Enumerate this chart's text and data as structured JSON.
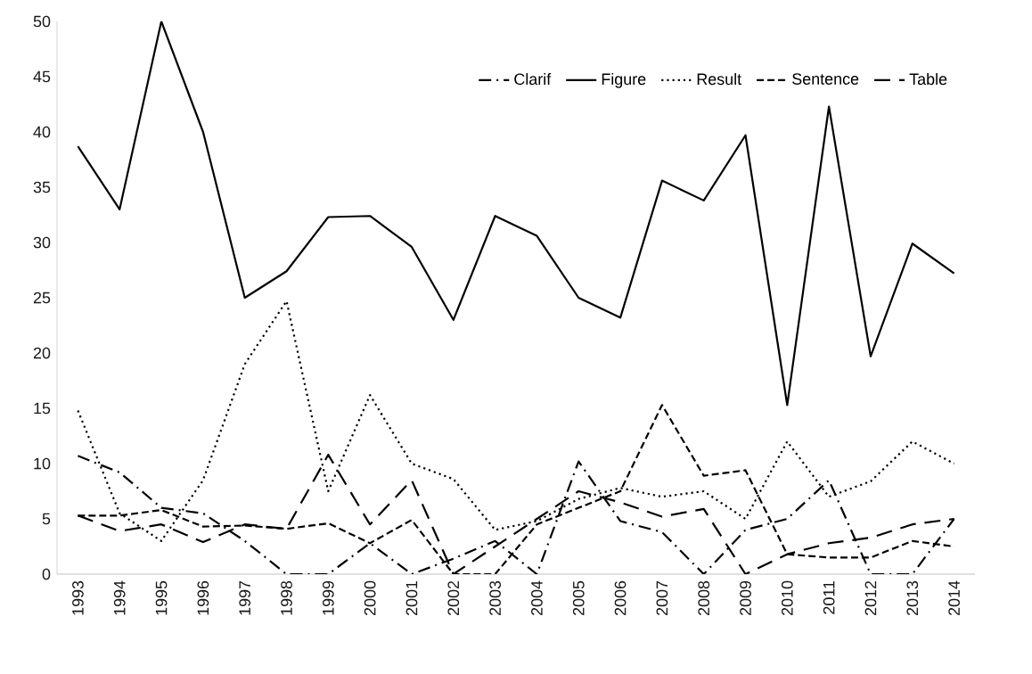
{
  "chart_data": {
    "type": "line",
    "categories": [
      "1993",
      "1994",
      "1995",
      "1996",
      "1997",
      "1998",
      "1999",
      "2000",
      "2001",
      "2002",
      "2003",
      "2004",
      "2005",
      "2006",
      "2007",
      "2008",
      "2009",
      "2010",
      "2011",
      "2012",
      "2013",
      "2014"
    ],
    "series": [
      {
        "name": "Clarif",
        "color": "#000000",
        "line_style": "dashdotted",
        "values": [
          10.7,
          9.2,
          6,
          5.5,
          3,
          0,
          0,
          2.8,
          0,
          1.4,
          3,
          0,
          10.2,
          4.8,
          3.8,
          0,
          4,
          5,
          8.5,
          0,
          0,
          5
        ]
      },
      {
        "name": "Figure",
        "color": "#000000",
        "line_style": "solid",
        "values": [
          38.7,
          33,
          50,
          40,
          25,
          27.4,
          32.3,
          32.4,
          29.6,
          23,
          32.4,
          30.6,
          25,
          23.2,
          35.6,
          33.8,
          39.7,
          15.3,
          42.3,
          19.7,
          29.9,
          27.2
        ]
      },
      {
        "name": "Result",
        "color": "#000000",
        "line_style": "dotted",
        "values": [
          14.8,
          5.5,
          3,
          8.5,
          19,
          24.7,
          7.5,
          16.2,
          10,
          8.6,
          4,
          4.8,
          6.8,
          7.8,
          7,
          7.5,
          5,
          12,
          7,
          8.4,
          12,
          10
        ]
      },
      {
        "name": "Sentence",
        "color": "#000000",
        "line_style": "dashed",
        "values": [
          5.3,
          5.3,
          5.8,
          4.3,
          4.4,
          4.1,
          4.6,
          2.8,
          4.9,
          0,
          0,
          4.5,
          6,
          7.5,
          15.3,
          8.9,
          9.4,
          1.8,
          1.5,
          1.5,
          3,
          2.5
        ]
      },
      {
        "name": "Table",
        "color": "#000000",
        "line_style": "loosely dashed",
        "values": [
          5.3,
          3.9,
          4.5,
          2.9,
          4.5,
          4.1,
          10.8,
          4.5,
          8.5,
          0,
          2.5,
          5,
          7.5,
          6.5,
          5.2,
          5.9,
          0,
          1.8,
          2.8,
          3.3,
          4.5,
          5
        ]
      }
    ],
    "ylim": [
      0,
      50
    ],
    "yticks": [
      0,
      5,
      10,
      15,
      20,
      25,
      30,
      35,
      40,
      45,
      50
    ],
    "grid": false,
    "legend": "top right",
    "marker": "none"
  }
}
